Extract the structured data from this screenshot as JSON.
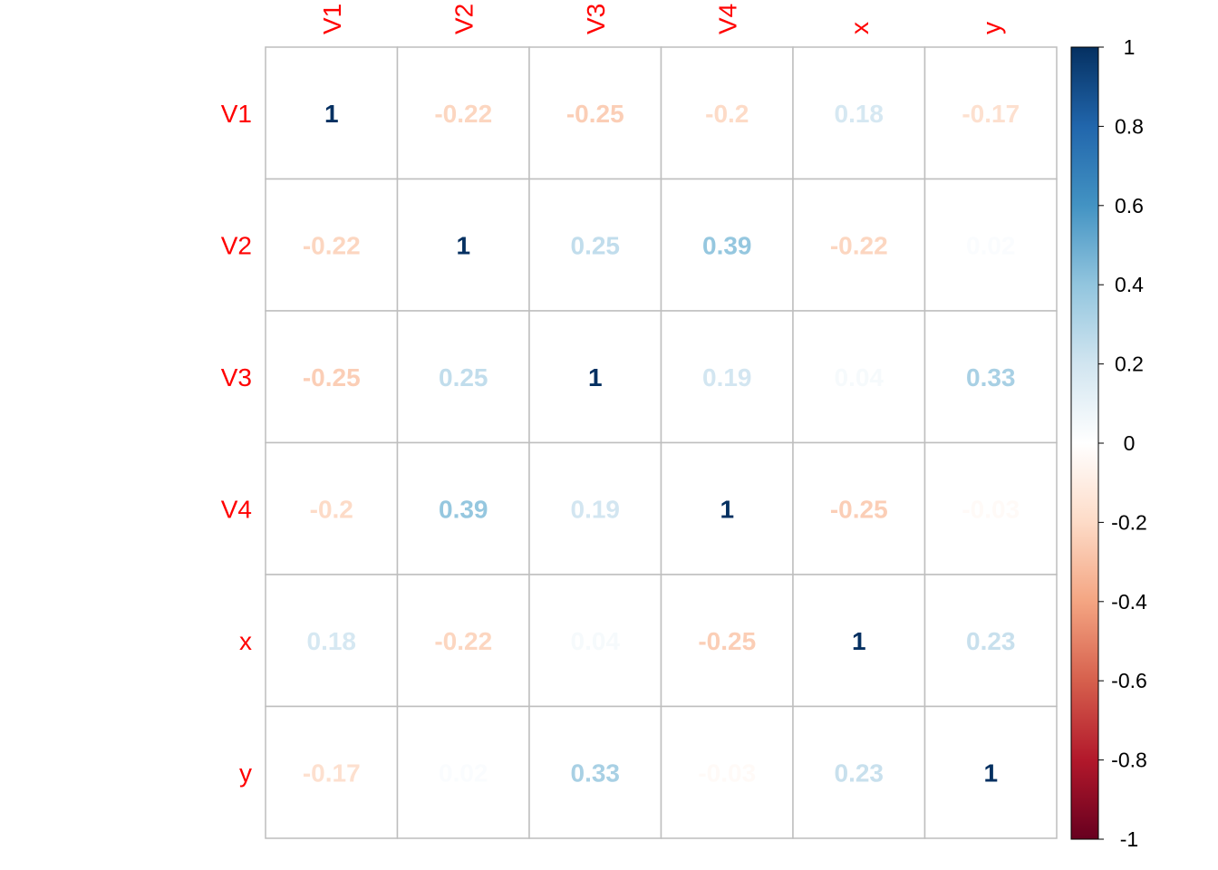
{
  "chart_data": {
    "type": "heatmap",
    "title": "",
    "variables": [
      "V1",
      "V2",
      "V3",
      "V4",
      "x",
      "y"
    ],
    "matrix": [
      [
        1,
        -0.22,
        -0.25,
        -0.2,
        0.18,
        -0.17
      ],
      [
        -0.22,
        1,
        0.25,
        0.39,
        -0.22,
        0.02
      ],
      [
        -0.25,
        0.25,
        1,
        0.19,
        0.04,
        0.33
      ],
      [
        -0.2,
        0.39,
        0.19,
        1,
        -0.25,
        -0.03
      ],
      [
        0.18,
        -0.22,
        0.04,
        -0.25,
        1,
        0.23
      ],
      [
        -0.17,
        0.02,
        0.33,
        -0.03,
        0.23,
        1
      ]
    ],
    "cell_labels": [
      [
        "1",
        "-0.22",
        "-0.25",
        "-0.2",
        "0.18",
        "-0.17"
      ],
      [
        "-0.22",
        "1",
        "0.25",
        "0.39",
        "-0.22",
        "0.02"
      ],
      [
        "-0.25",
        "0.25",
        "1",
        "0.19",
        "0.04",
        "0.33"
      ],
      [
        "-0.2",
        "0.39",
        "0.19",
        "1",
        "-0.25",
        "-0.03"
      ],
      [
        "0.18",
        "-0.22",
        "0.04",
        "-0.25",
        "1",
        "0.23"
      ],
      [
        "-0.17",
        "0.02",
        "0.33",
        "-0.03",
        "0.23",
        "1"
      ]
    ],
    "color_scale": {
      "range": [
        -1,
        1
      ],
      "ticks": [
        "1",
        "0.8",
        "0.6",
        "0.4",
        "0.2",
        "0",
        "-0.2",
        "-0.4",
        "-0.6",
        "-0.8",
        "-1"
      ],
      "tick_values": [
        1,
        0.8,
        0.6,
        0.4,
        0.2,
        0,
        -0.2,
        -0.4,
        -0.6,
        -0.8,
        -1
      ],
      "stops": [
        "#67001F",
        "#B2182B",
        "#D6604D",
        "#F4A582",
        "#FDDBC7",
        "#FFFFFF",
        "#D1E5F0",
        "#92C5DE",
        "#4393C3",
        "#2166AC",
        "#053061"
      ],
      "legend_position": "right"
    },
    "label_color": "#FF0000",
    "grid_color": "#BEBEBE"
  }
}
